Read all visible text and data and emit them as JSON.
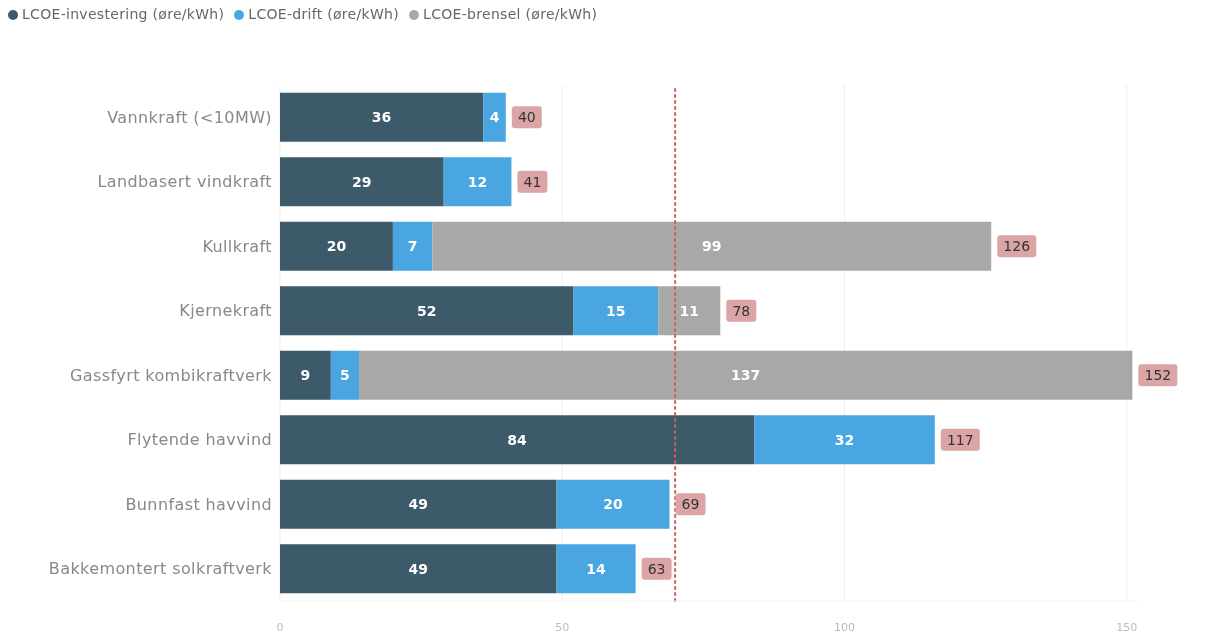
{
  "chart_data": {
    "type": "bar",
    "orientation": "horizontal",
    "stacked": true,
    "categories": [
      "Vannkraft (<10MW)",
      "Landbasert vindkraft",
      "Kullkraft",
      "Kjernekraft",
      "Gassfyrt kombikraftverk",
      "Flytende havvind",
      "Bunnfast havvind",
      "Bakkemontert solkraftverk"
    ],
    "series": [
      {
        "name": "LCOE-investering (øre/kWh)",
        "color": "#3d5a6b",
        "values": [
          36,
          29,
          20,
          52,
          9,
          84,
          49,
          49
        ]
      },
      {
        "name": "LCOE-drift (øre/kWh)",
        "color": "#4aa6e0",
        "values": [
          4,
          12,
          7,
          15,
          5,
          32,
          20,
          14
        ]
      },
      {
        "name": "LCOE-brensel (øre/kWh)",
        "color": "#a8a8a8",
        "values": [
          null,
          null,
          99,
          11,
          137,
          null,
          null,
          null
        ]
      }
    ],
    "totals": [
      "40",
      "41",
      "126",
      "78",
      "152",
      "117",
      "69",
      "63"
    ],
    "data_labels": true,
    "xlim": [
      0,
      152
    ],
    "xticks": [
      0,
      50,
      100,
      150
    ],
    "grid": "x",
    "legend": "top left",
    "ref_lines": [
      {
        "axis": "x",
        "value": 70,
        "color": "#d0605a",
        "line_style": "dotted"
      }
    ]
  }
}
